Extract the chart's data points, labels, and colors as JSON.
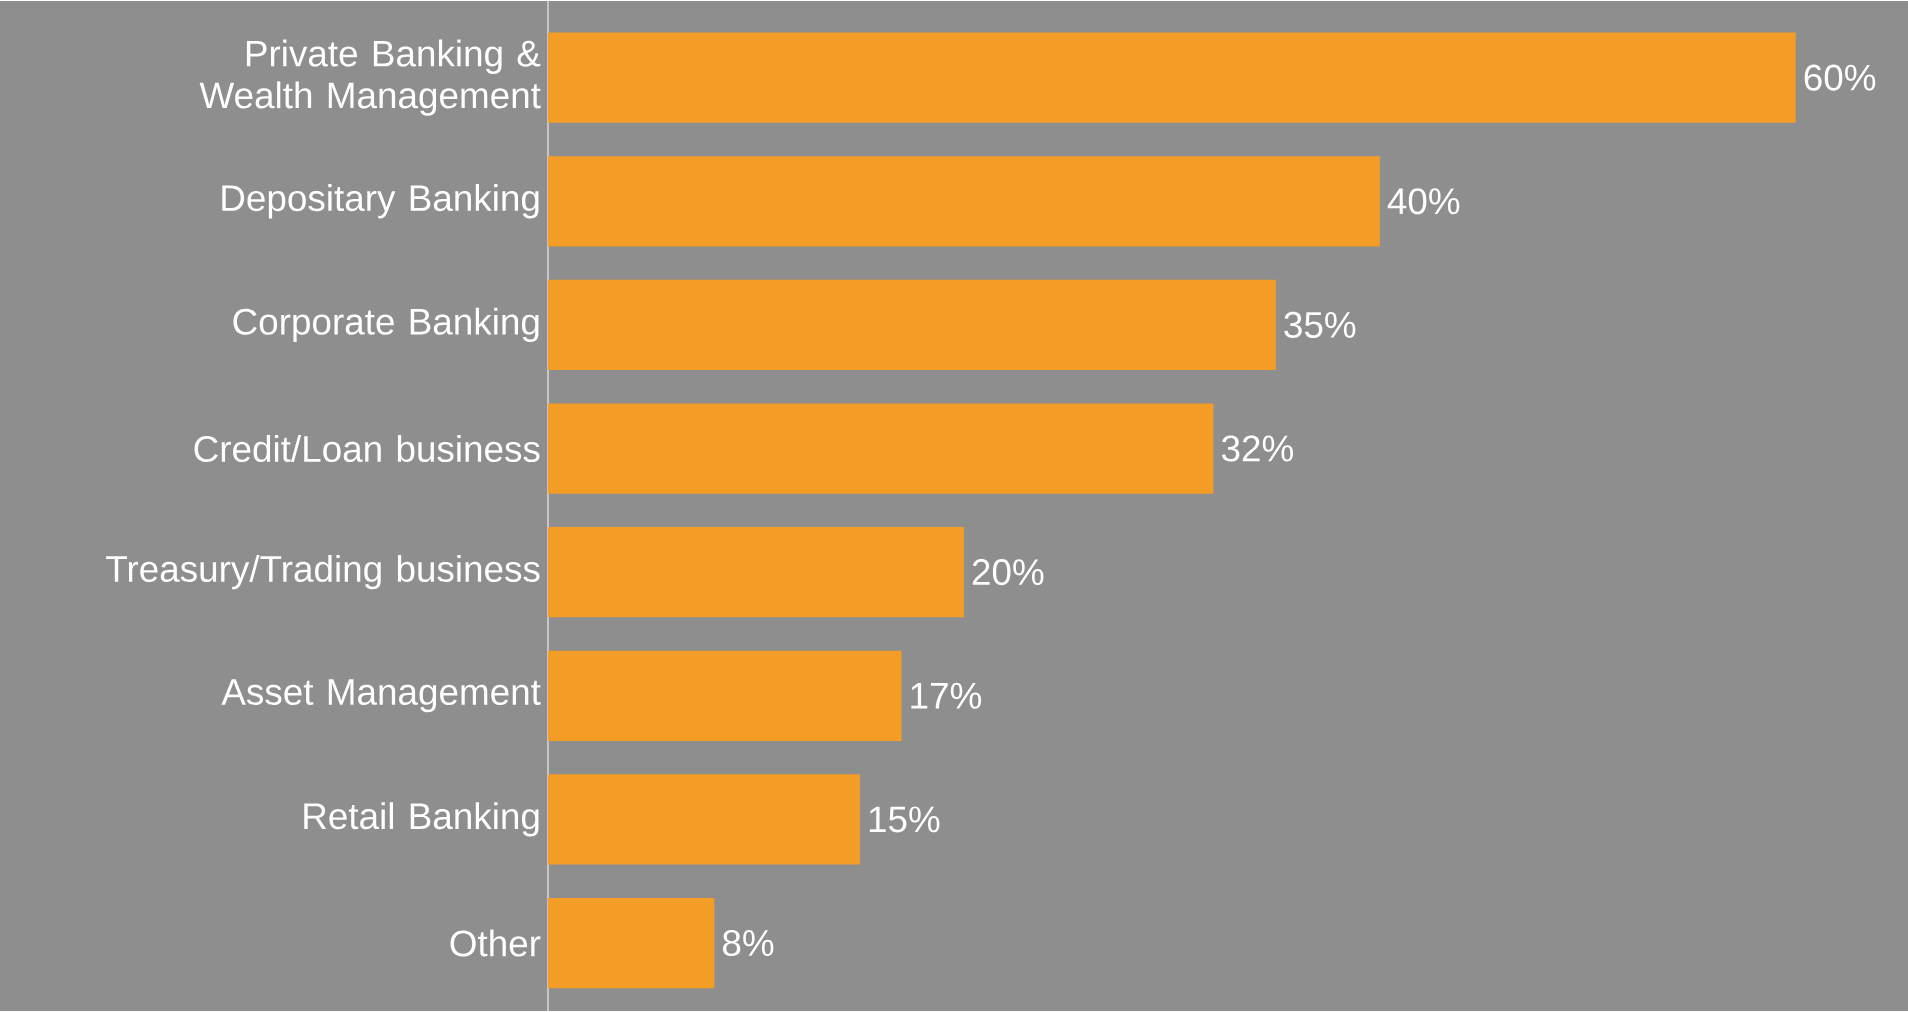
{
  "chart_data": {
    "type": "bar",
    "orientation": "horizontal",
    "categories": [
      "Private Banking & Wealth Management",
      "Depositary Banking",
      "Corporate Banking",
      "Credit/Loan business",
      "Treasury/Trading business",
      "Asset Management",
      "Retail Banking",
      "Other"
    ],
    "values": [
      60,
      40,
      35,
      32,
      20,
      17,
      15,
      8
    ],
    "value_labels": [
      "60%",
      "40%",
      "35%",
      "32%",
      "20%",
      "17%",
      "15%",
      "8%"
    ],
    "color": "#f39c26"
  }
}
